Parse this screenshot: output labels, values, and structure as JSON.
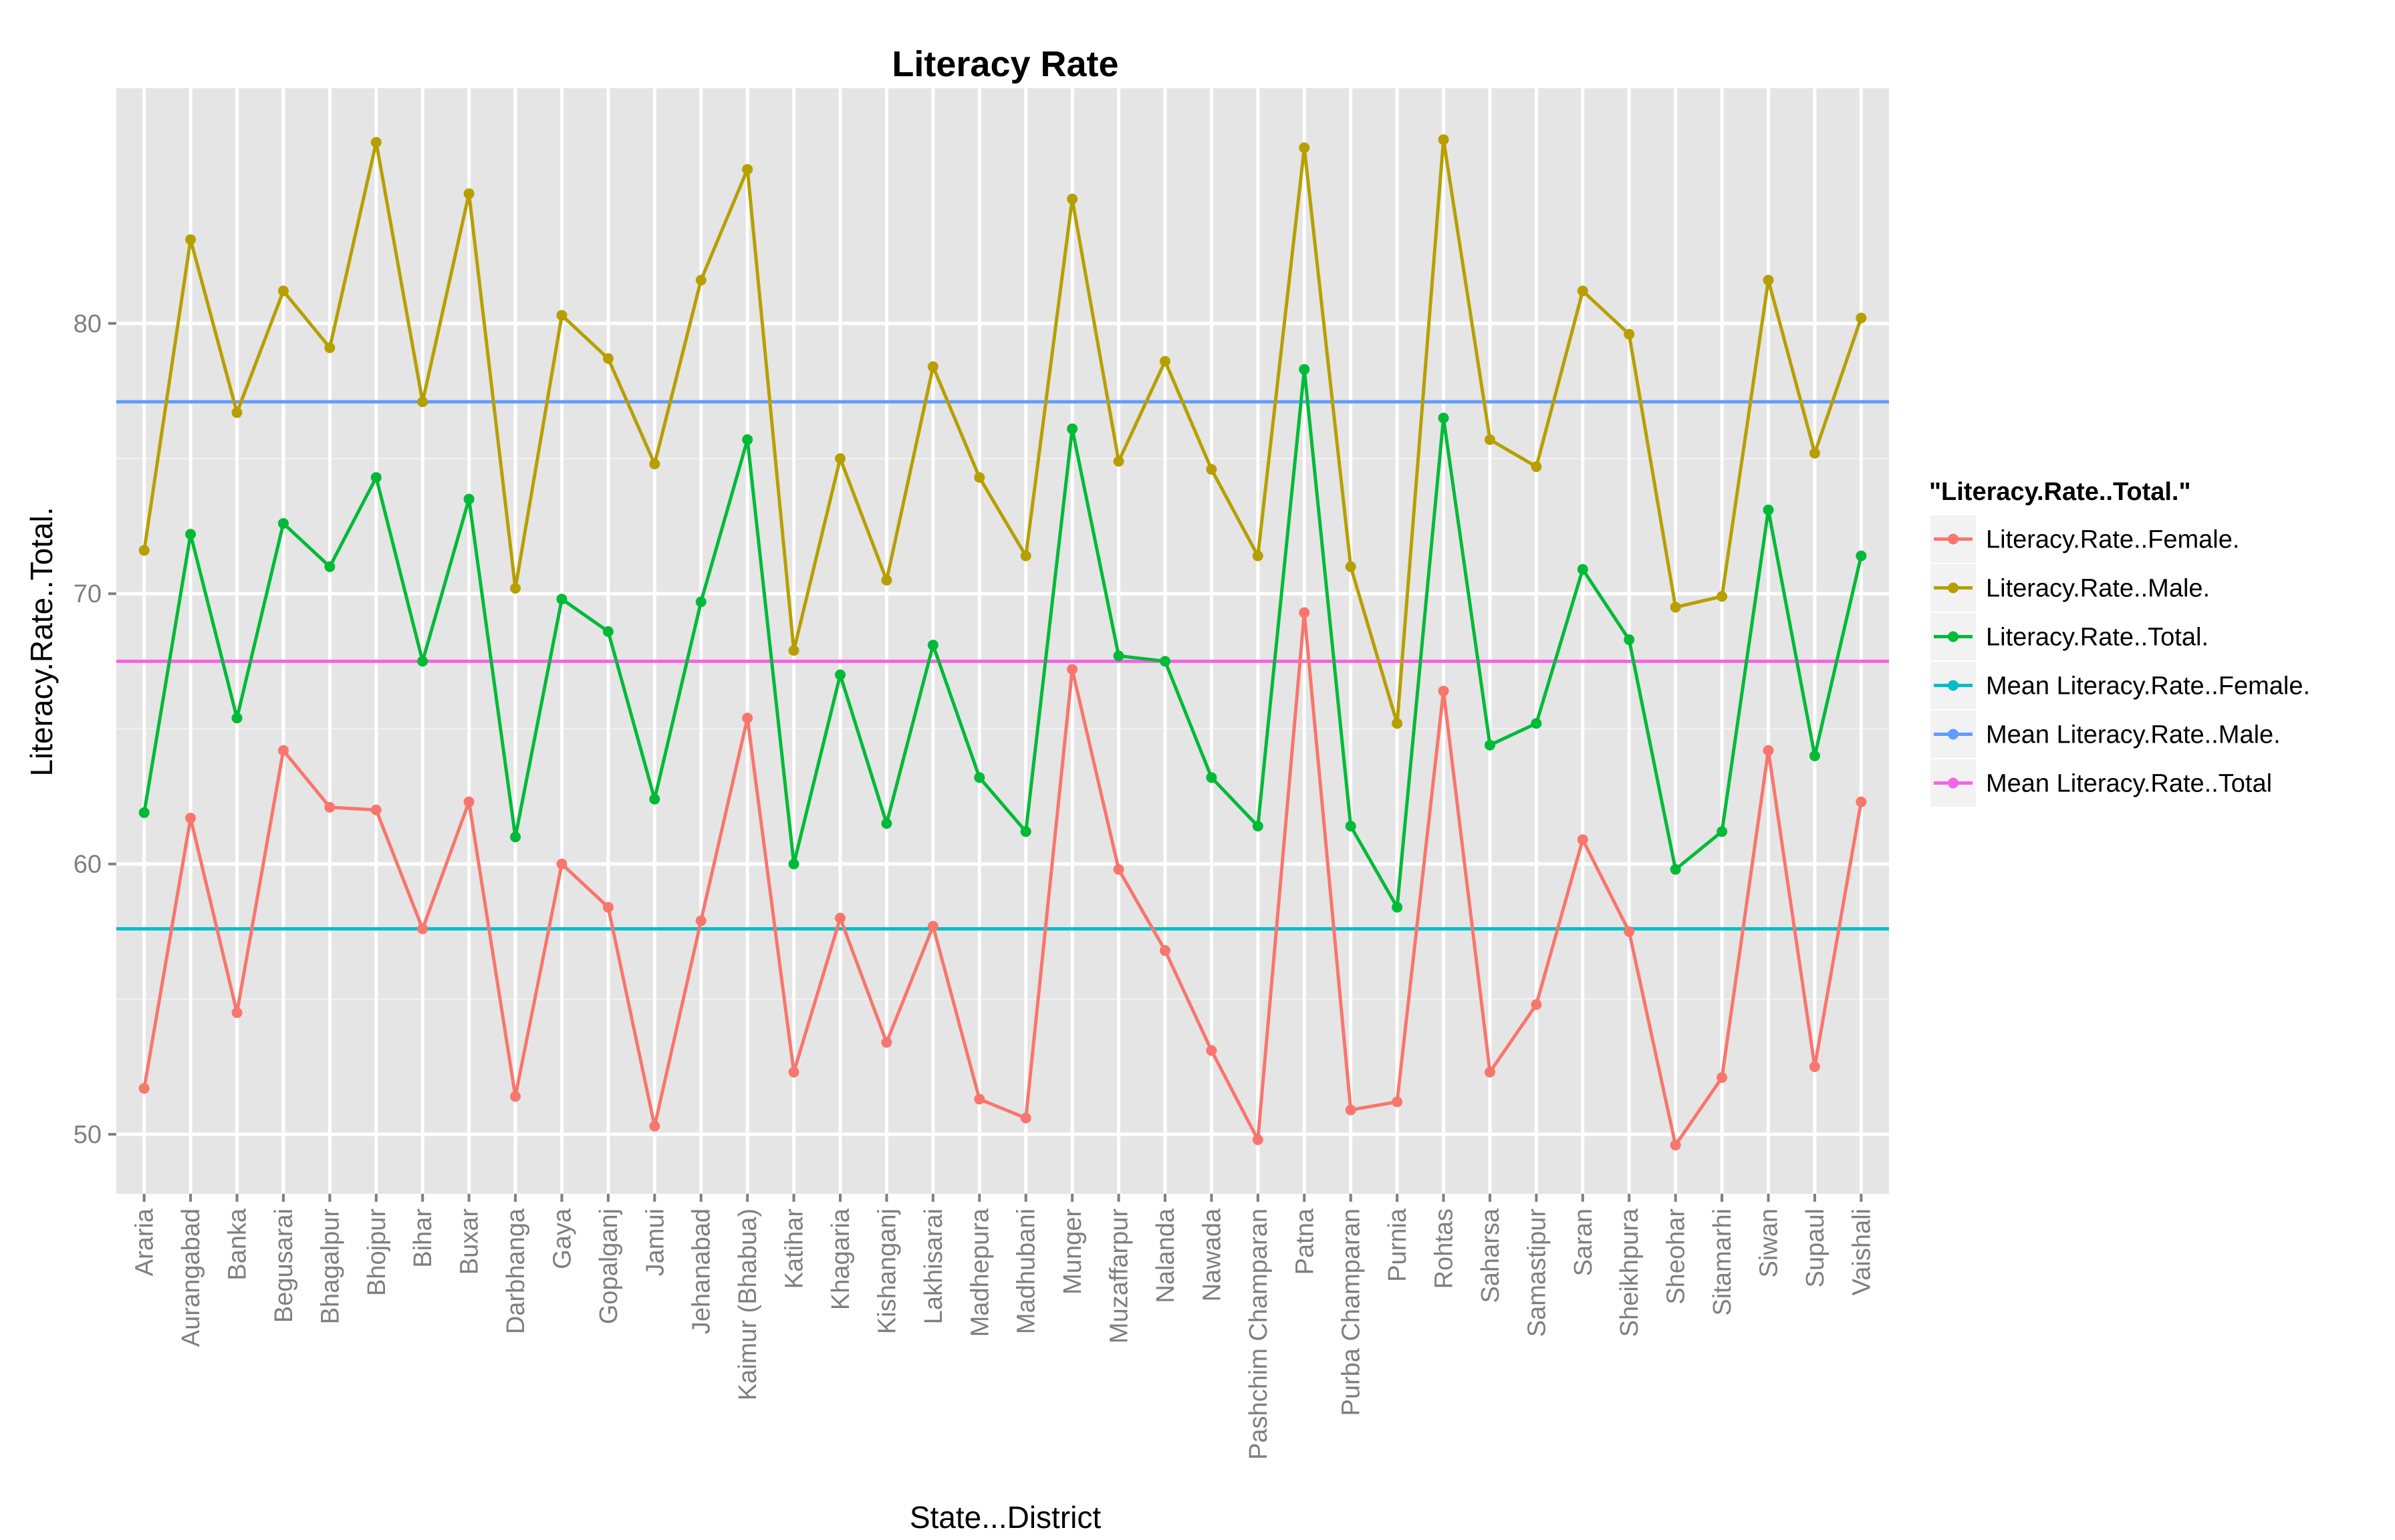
{
  "chart_data": {
    "type": "line",
    "title": "Literacy Rate",
    "xlabel": "State...District",
    "ylabel": "Literacy.Rate..Total.",
    "ylim": [
      47.8,
      88.7
    ],
    "yticks": [
      50,
      60,
      70,
      80
    ],
    "grid": true,
    "legend_position": "right",
    "legend_title": "\"Literacy.Rate..Total.\"",
    "categories": [
      "Araria",
      "Aurangabad",
      "Banka",
      "Begusarai",
      "Bhagalpur",
      "Bhojpur",
      "Bihar",
      "Buxar",
      "Darbhanga",
      "Gaya",
      "Gopalganj",
      "Jamui",
      "Jehanabad",
      "Kaimur (Bhabua)",
      "Katihar",
      "Khagaria",
      "Kishanganj",
      "Lakhisarai",
      "Madhepura",
      "Madhubani",
      "Munger",
      "Muzaffarpur",
      "Nalanda",
      "Nawada",
      "Pashchim Champaran",
      "Patna",
      "Purba Champaran",
      "Purnia",
      "Rohtas",
      "Saharsa",
      "Samastipur",
      "Saran",
      "Sheikhpura",
      "Sheohar",
      "Sitamarhi",
      "Siwan",
      "Supaul",
      "Vaishali"
    ],
    "series": [
      {
        "name": "Literacy.Rate..Female.",
        "color": "#F8766D",
        "values": [
          51.7,
          61.7,
          54.5,
          64.2,
          62.1,
          62.0,
          57.6,
          62.3,
          51.4,
          60.0,
          58.4,
          50.3,
          57.9,
          65.4,
          52.3,
          58.0,
          53.4,
          57.7,
          51.3,
          50.6,
          67.2,
          59.8,
          56.8,
          53.1,
          49.8,
          69.3,
          50.9,
          51.2,
          66.4,
          52.3,
          54.8,
          60.9,
          57.5,
          49.6,
          52.1,
          64.2,
          52.5,
          62.3
        ]
      },
      {
        "name": "Literacy.Rate..Male.",
        "color": "#B79F00",
        "values": [
          71.6,
          83.1,
          76.7,
          81.2,
          79.1,
          86.7,
          77.1,
          84.8,
          70.2,
          80.3,
          78.7,
          74.8,
          81.6,
          85.7,
          67.9,
          75.0,
          70.5,
          78.4,
          74.3,
          71.4,
          84.6,
          74.9,
          78.6,
          74.6,
          71.4,
          86.5,
          71.0,
          65.2,
          86.8,
          75.7,
          74.7,
          81.2,
          79.6,
          69.5,
          69.9,
          81.6,
          75.2,
          80.2
        ]
      },
      {
        "name": "Literacy.Rate..Total.",
        "color": "#00BA38",
        "values": [
          61.9,
          72.2,
          65.4,
          72.6,
          71.0,
          74.3,
          67.5,
          73.5,
          61.0,
          69.8,
          68.6,
          62.4,
          69.7,
          75.7,
          60.0,
          67.0,
          61.5,
          68.1,
          63.2,
          61.2,
          76.1,
          67.7,
          67.5,
          63.2,
          61.4,
          78.3,
          61.4,
          58.4,
          76.5,
          64.4,
          65.2,
          70.9,
          68.3,
          59.8,
          61.2,
          73.1,
          64.0,
          71.4
        ]
      },
      {
        "name": "Mean Literacy.Rate..Female.",
        "color": "#00BFC4",
        "value": 57.6
      },
      {
        "name": "Mean Literacy.Rate..Male.",
        "color": "#619CFF",
        "value": 77.1
      },
      {
        "name": "Mean Literacy.Rate..Total",
        "color": "#F564E3",
        "value": 67.5
      }
    ]
  }
}
